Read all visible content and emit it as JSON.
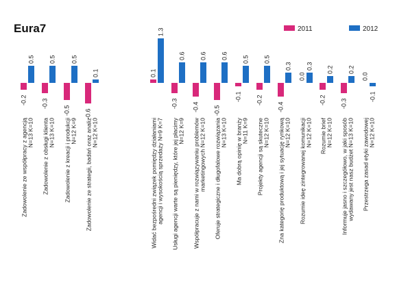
{
  "chart_data": {
    "type": "bar",
    "title": "Eura7",
    "legend_position": "top-right",
    "grid": false,
    "ylim": [
      -0.7,
      1.4
    ],
    "colors": {
      "2011": "#d8287a",
      "2012": "#1e6fc4"
    },
    "series": [
      {
        "name": "2011",
        "values": [
          -0.2,
          -0.3,
          -0.5,
          -0.6,
          0.1,
          -0.3,
          -0.4,
          -0.5,
          -0.1,
          -0.2,
          -0.4,
          0.0,
          -0.2,
          -0.3,
          0.0
        ]
      },
      {
        "name": "2012",
        "values": [
          0.5,
          0.5,
          0.5,
          0.1,
          1.3,
          0.6,
          0.6,
          0.6,
          0.5,
          0.5,
          0.3,
          0.3,
          0.2,
          0.2,
          -0.1
        ]
      }
    ],
    "value_labels": {
      "2011": [
        "-0.2",
        "-0.3",
        "-0.5",
        "-0.6",
        "0.1",
        "-0.3",
        "-0.4",
        "-0.5",
        "-0.1",
        "-0.2",
        "-0.4",
        "0.0",
        "-0.2",
        "-0.3",
        "0.0"
      ],
      "2012": [
        "0.5",
        "0.5",
        "0.5",
        "0.1",
        "1.3",
        "0.6",
        "0.6",
        "0.6",
        "0.5",
        "0.5",
        "0.3",
        "0.3",
        "0.2",
        "0.2",
        "-0.1"
      ]
    },
    "categories": [
      [
        "Zadowolenie ze współpracy z agencją",
        "N=13 K=10"
      ],
      [
        "Zadowolenie z obsługi klienta",
        "N=13 K=10"
      ],
      [
        "Zadowolenie z kreacji i produkcji",
        "N=12 K=9"
      ],
      [
        "Zadowolenie ze strategii, badań oraz analiz",
        "N=12 K=10"
      ],
      [
        "Widać bezpośredni związek pomiędzy działaniami",
        "agencji i wysokością sprzedaży N=9 K=7"
      ],
      [
        "Usługi agencji warte są pieniędzy, które jej płacimy",
        "N=12 K=9"
      ],
      [
        "Współpracuje z nami w rozwiązywaniu problemów",
        "marketingowych N=12 K=10"
      ],
      [
        "Oferuje strategiczne i długofalowe rozwiązania",
        "N=13 K=10"
      ],
      [
        "Ma dobrą opinię w branży",
        "N=11 K=9"
      ],
      [
        "Projekty agencji są skuteczne",
        "N=12 K=10"
      ],
      [
        "Zna kategorię produktową i jej sytuację rynkową",
        "N=12 K=10"
      ],
      [
        "Rozumie ideę zintegrowanej komunikacji",
        "N=12 K=10"
      ],
      [
        "Rozumie brief",
        "N=12 K=10"
      ],
      [
        "Informuje jasno i szczegółowo, w jaki sposób",
        "wydawany jest nasz budżet N=13 K=10"
      ],
      [
        "Przestrzega zasad etyki zawodowej",
        "N=12 K=10"
      ]
    ]
  }
}
